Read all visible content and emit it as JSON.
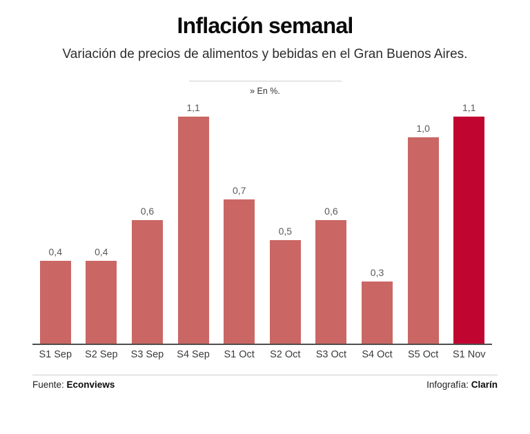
{
  "header": {
    "title": "Inflación semanal",
    "subtitle": "Variación de precios de alimentos y bebidas en el Gran Buenos Aires.",
    "unit_note": "» En %."
  },
  "chart_data": {
    "type": "bar",
    "categories": [
      "S1 Sep",
      "S2 Sep",
      "S3 Sep",
      "S4 Sep",
      "S1 Oct",
      "S2 Oct",
      "S3 Oct",
      "S4 Oct",
      "S5 Oct",
      "S1 Nov"
    ],
    "values": [
      0.4,
      0.4,
      0.6,
      1.1,
      0.7,
      0.5,
      0.6,
      0.3,
      1.0,
      1.1
    ],
    "value_labels": [
      "0,4",
      "0,4",
      "0,6",
      "1,1",
      "0,7",
      "0,5",
      "0,6",
      "0,3",
      "1,0",
      "1,1"
    ],
    "title": "Inflación semanal",
    "xlabel": "",
    "ylabel": "En %",
    "ylim": [
      0,
      1.1
    ],
    "grid": false,
    "legend": false,
    "bar_color": "#ca6764",
    "highlight_color": "#c10531",
    "highlight_index": 9
  },
  "footer": {
    "source_label": "Fuente:",
    "source_value": "Econviews",
    "credit_label": "Infografía:",
    "credit_value": "Clarín"
  }
}
